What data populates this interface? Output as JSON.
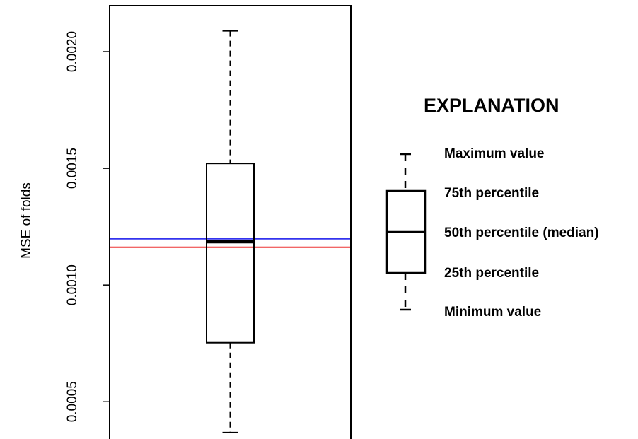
{
  "chart_data": {
    "type": "box",
    "ylabel": "MSE of folds",
    "xlabel": "",
    "ylim": [
      0.000319,
      0.002197
    ],
    "y_ticks": [
      {
        "value": 0.0005,
        "label": "0.0005"
      },
      {
        "value": 0.001,
        "label": "0.0010"
      },
      {
        "value": 0.0015,
        "label": "0.0015"
      },
      {
        "value": 0.002,
        "label": "0.0020"
      }
    ],
    "box": {
      "min": 0.000368,
      "q1": 0.000753,
      "median": 0.001186,
      "q3": 0.001521,
      "max": 0.002089
    },
    "reference_lines": [
      {
        "value": 0.001198,
        "color": "#3333ee"
      },
      {
        "value": 0.001162,
        "color": "#ee3333"
      }
    ]
  },
  "legend": {
    "title": "EXPLANATION",
    "items": [
      {
        "key": "max",
        "label": "Maximum value"
      },
      {
        "key": "q3",
        "label": "75th percentile"
      },
      {
        "key": "median",
        "label": "50th percentile (median)"
      },
      {
        "key": "q1",
        "label": "25th percentile"
      },
      {
        "key": "min",
        "label": "Minimum value"
      }
    ]
  }
}
